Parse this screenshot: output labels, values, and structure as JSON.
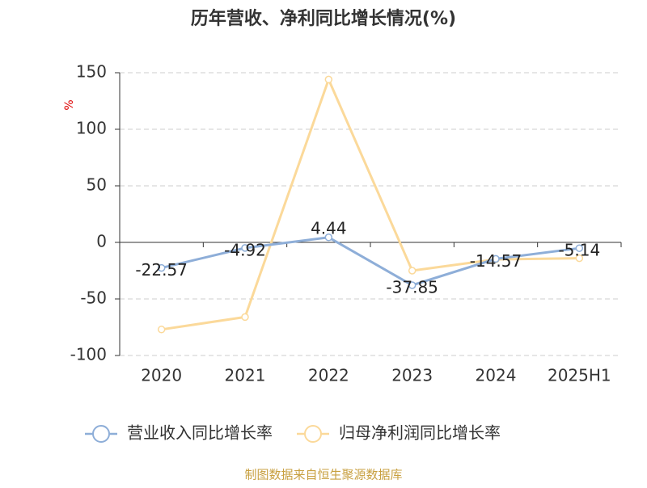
{
  "chart_data": {
    "type": "line",
    "title": "历年营收、净利同比增长情况(%)",
    "y_label": "%",
    "categories": [
      "2020",
      "2021",
      "2022",
      "2023",
      "2024",
      "2025H1"
    ],
    "series": [
      {
        "name": "营业收入同比增长率",
        "color": "#8eaed8",
        "values": [
          -22.57,
          -4.92,
          4.44,
          -37.85,
          -14.57,
          -5.14
        ],
        "show_labels": true
      },
      {
        "name": "归母净利润同比增长率",
        "color": "#fbd99a",
        "values": [
          -77,
          -66,
          144,
          -25,
          -15,
          -14
        ],
        "show_labels": false
      }
    ],
    "ylim": [
      -100,
      150
    ],
    "yticks": [
      -100,
      -50,
      0,
      50,
      100,
      150
    ],
    "grid": true,
    "legend": "bottom",
    "source": "制图数据来自恒生聚源数据库"
  }
}
